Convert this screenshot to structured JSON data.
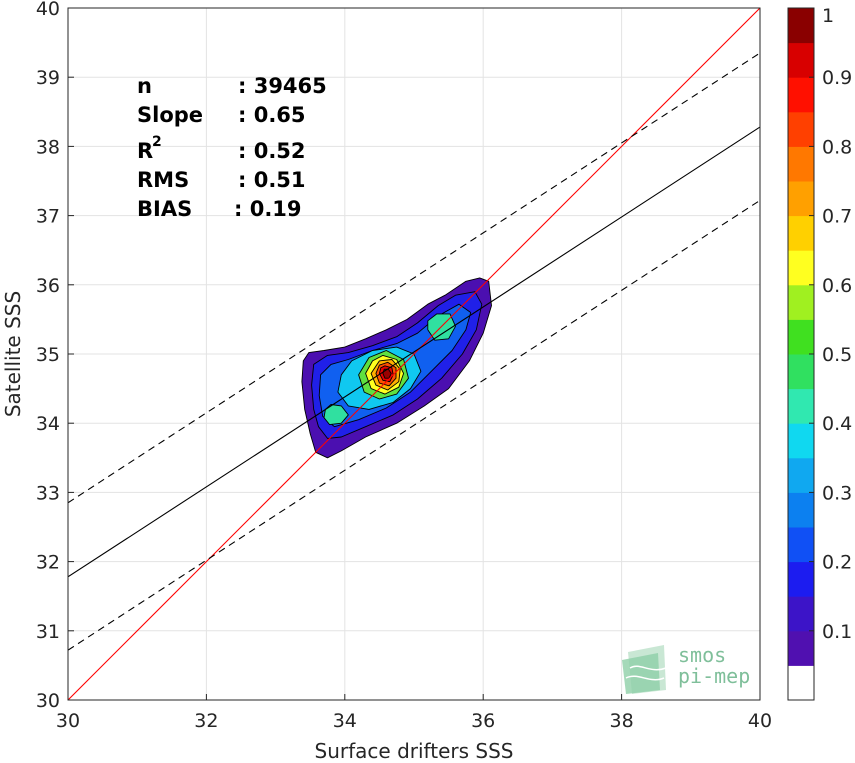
{
  "chart_data": {
    "type": "contour",
    "xlabel": "Surface drifters SSS",
    "ylabel": "Satellite SSS",
    "xlim": [
      30,
      40
    ],
    "ylim": [
      30,
      40
    ],
    "x_ticks": [
      "30",
      "32",
      "34",
      "36",
      "38",
      "40"
    ],
    "y_ticks": [
      "30",
      "31",
      "32",
      "33",
      "34",
      "35",
      "36",
      "37",
      "38",
      "39",
      "40"
    ],
    "grid": true,
    "stats": [
      {
        "label": "n",
        "value": ": 39465"
      },
      {
        "label": "Slope",
        "value": ": 0.65"
      },
      {
        "label": "R",
        "sup": "2",
        "value": ": 0.52"
      },
      {
        "label": "RMS",
        "value": ": 0.51"
      },
      {
        "label": "BIAS",
        "value": ": 0.19"
      }
    ],
    "lines": [
      {
        "kind": "identity",
        "color": "#ff0000",
        "from": [
          30,
          30
        ],
        "to": [
          40,
          40
        ]
      },
      {
        "kind": "regression",
        "color": "#000000",
        "dash": false,
        "from": [
          30,
          31.78
        ],
        "to": [
          40,
          38.28
        ]
      },
      {
        "kind": "upper-bound",
        "color": "#000000",
        "dash": true,
        "from": [
          30,
          32.85
        ],
        "to": [
          40,
          39.35
        ]
      },
      {
        "kind": "lower-bound",
        "color": "#000000",
        "dash": true,
        "from": [
          30,
          30.72
        ],
        "to": [
          40,
          37.22
        ]
      }
    ],
    "density_peak": {
      "x": 34.6,
      "y": 34.7
    },
    "levels": [
      {
        "level": 0.05,
        "color": "#4b0fb0",
        "polygon": [
          [
            33.4,
            34.9
          ],
          [
            33.38,
            34.6
          ],
          [
            33.42,
            34.2
          ],
          [
            33.5,
            33.85
          ],
          [
            33.58,
            33.58
          ],
          [
            33.75,
            33.5
          ],
          [
            33.95,
            33.6
          ],
          [
            34.3,
            33.8
          ],
          [
            34.75,
            34.0
          ],
          [
            35.15,
            34.25
          ],
          [
            35.5,
            34.5
          ],
          [
            35.8,
            34.9
          ],
          [
            36.0,
            35.3
          ],
          [
            36.12,
            35.7
          ],
          [
            36.08,
            36.05
          ],
          [
            35.95,
            36.1
          ],
          [
            35.75,
            36.05
          ],
          [
            35.45,
            35.85
          ],
          [
            35.2,
            35.72
          ],
          [
            34.9,
            35.5
          ],
          [
            34.6,
            35.35
          ],
          [
            34.3,
            35.22
          ],
          [
            34.0,
            35.1
          ],
          [
            33.7,
            35.05
          ],
          [
            33.48,
            35.02
          ]
        ]
      },
      {
        "level": 0.15,
        "color": "#2020e8",
        "polygon": [
          [
            33.55,
            34.85
          ],
          [
            33.52,
            34.55
          ],
          [
            33.55,
            34.2
          ],
          [
            33.62,
            33.95
          ],
          [
            33.75,
            33.78
          ],
          [
            33.95,
            33.8
          ],
          [
            34.3,
            33.95
          ],
          [
            34.7,
            34.12
          ],
          [
            35.05,
            34.35
          ],
          [
            35.4,
            34.65
          ],
          [
            35.7,
            35.0
          ],
          [
            35.9,
            35.35
          ],
          [
            35.98,
            35.72
          ],
          [
            35.88,
            35.9
          ],
          [
            35.6,
            35.85
          ],
          [
            35.35,
            35.7
          ],
          [
            35.05,
            35.45
          ],
          [
            34.75,
            35.25
          ],
          [
            34.4,
            35.12
          ],
          [
            34.05,
            35.02
          ],
          [
            33.75,
            34.98
          ]
        ]
      },
      {
        "level": 0.25,
        "color": "#1060f0",
        "polygon": [
          [
            33.65,
            34.7
          ],
          [
            33.63,
            34.4
          ],
          [
            33.68,
            34.1
          ],
          [
            33.85,
            33.95
          ],
          [
            34.2,
            34.05
          ],
          [
            34.6,
            34.22
          ],
          [
            34.95,
            34.45
          ],
          [
            35.25,
            34.75
          ],
          [
            35.55,
            35.05
          ],
          [
            35.75,
            35.35
          ],
          [
            35.82,
            35.6
          ],
          [
            35.65,
            35.72
          ],
          [
            35.35,
            35.55
          ],
          [
            35.05,
            35.3
          ],
          [
            34.75,
            35.15
          ],
          [
            34.4,
            35.05
          ],
          [
            34.05,
            34.92
          ],
          [
            33.8,
            34.85
          ]
        ]
      },
      {
        "level": 0.35,
        "color": "#10c8f0",
        "polygon": [
          [
            33.95,
            34.7
          ],
          [
            33.9,
            34.45
          ],
          [
            34.05,
            34.25
          ],
          [
            34.35,
            34.2
          ],
          [
            34.7,
            34.3
          ],
          [
            34.95,
            34.5
          ],
          [
            35.1,
            34.75
          ],
          [
            35.0,
            35.0
          ],
          [
            34.75,
            35.1
          ],
          [
            34.4,
            35.05
          ],
          [
            34.1,
            34.9
          ]
        ]
      },
      {
        "level": 0.4,
        "color": "#30e0a0",
        "polygon": [
          [
            33.72,
            34.2
          ],
          [
            33.7,
            34.08
          ],
          [
            33.78,
            33.98
          ],
          [
            33.95,
            34.0
          ],
          [
            34.05,
            34.12
          ],
          [
            33.95,
            34.25
          ],
          [
            33.8,
            34.27
          ]
        ]
      },
      {
        "level": 0.4,
        "color": "#30e0a0",
        "polygon": [
          [
            35.2,
            35.35
          ],
          [
            35.3,
            35.2
          ],
          [
            35.5,
            35.22
          ],
          [
            35.6,
            35.4
          ],
          [
            35.52,
            35.58
          ],
          [
            35.33,
            35.58
          ],
          [
            35.2,
            35.48
          ]
        ]
      },
      {
        "level": 0.5,
        "color": "#60e040",
        "polygon": [
          [
            34.2,
            34.7
          ],
          [
            34.28,
            34.45
          ],
          [
            34.5,
            34.35
          ],
          [
            34.75,
            34.42
          ],
          [
            34.92,
            34.65
          ],
          [
            34.85,
            34.92
          ],
          [
            34.6,
            35.05
          ],
          [
            34.35,
            34.95
          ]
        ]
      },
      {
        "level": 0.6,
        "color": "#ffff20",
        "polygon": [
          [
            34.3,
            34.72
          ],
          [
            34.38,
            34.5
          ],
          [
            34.58,
            34.42
          ],
          [
            34.78,
            34.52
          ],
          [
            34.85,
            34.72
          ],
          [
            34.75,
            34.92
          ],
          [
            34.55,
            34.98
          ],
          [
            34.4,
            34.9
          ]
        ]
      },
      {
        "level": 0.7,
        "color": "#ffb000",
        "polygon": [
          [
            34.38,
            34.72
          ],
          [
            34.45,
            34.55
          ],
          [
            34.62,
            34.48
          ],
          [
            34.78,
            34.6
          ],
          [
            34.8,
            34.78
          ],
          [
            34.68,
            34.92
          ],
          [
            34.5,
            34.9
          ]
        ]
      },
      {
        "level": 0.8,
        "color": "#ff5000",
        "polygon": [
          [
            34.45,
            34.72
          ],
          [
            34.5,
            34.58
          ],
          [
            34.64,
            34.54
          ],
          [
            34.74,
            34.65
          ],
          [
            34.74,
            34.8
          ],
          [
            34.62,
            34.88
          ],
          [
            34.5,
            34.84
          ]
        ]
      },
      {
        "level": 0.9,
        "color": "#e80000",
        "polygon": [
          [
            34.5,
            34.72
          ],
          [
            34.55,
            34.62
          ],
          [
            34.65,
            34.6
          ],
          [
            34.7,
            34.7
          ],
          [
            34.68,
            34.8
          ],
          [
            34.58,
            34.83
          ],
          [
            34.52,
            34.8
          ]
        ]
      },
      {
        "level": 1.0,
        "color": "#9a0000",
        "polygon": [
          [
            34.55,
            34.72
          ],
          [
            34.58,
            34.65
          ],
          [
            34.64,
            34.65
          ],
          [
            34.67,
            34.72
          ],
          [
            34.63,
            34.78
          ],
          [
            34.57,
            34.78
          ]
        ]
      }
    ],
    "colorbar": {
      "ticks": [
        "0.1",
        "0.2",
        "0.3",
        "0.4",
        "0.5",
        "0.6",
        "0.7",
        "0.8",
        "0.9",
        "1"
      ],
      "colors": [
        "#ffffff",
        "#5010b0",
        "#3c14c8",
        "#1c1cf0",
        "#1050f5",
        "#0c80f0",
        "#10a8f0",
        "#10d8f0",
        "#30e8b0",
        "#30e060",
        "#40e020",
        "#a0f020",
        "#ffff20",
        "#ffd000",
        "#ffa000",
        "#ff7800",
        "#ff4000",
        "#ff1000",
        "#d80000",
        "#8a0000"
      ]
    }
  },
  "watermark": {
    "line1": "smos",
    "line2": "pi-mep"
  }
}
